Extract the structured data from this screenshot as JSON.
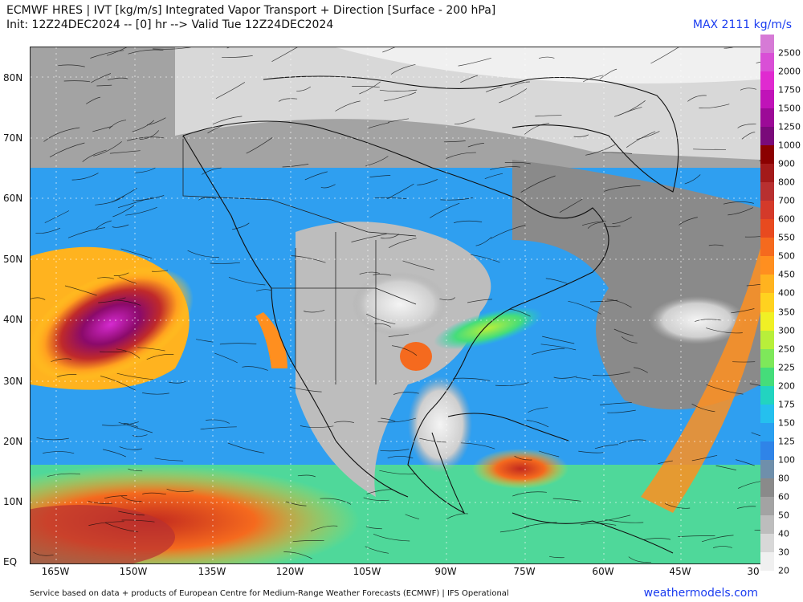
{
  "header": {
    "title_line1": "ECMWF HRES | IVT [kg/m/s] Integrated Vapor Transport + Direction [Surface - 200 hPa]",
    "title_line2": "Init: 12Z24DEC2024 -- [0] hr --> Valid Tue 12Z24DEC2024",
    "max_label": "MAX 2111 kg/m/s"
  },
  "map": {
    "latitude_labels": [
      "80N",
      "70N",
      "60N",
      "50N",
      "40N",
      "30N",
      "20N",
      "10N",
      "EQ"
    ],
    "longitude_labels": [
      "165W",
      "150W",
      "135W",
      "120W",
      "105W",
      "90W",
      "75W",
      "60W",
      "45W",
      "30"
    ]
  },
  "colorbar": {
    "levels": [
      {
        "label": "2500",
        "color": "#d67ad6"
      },
      {
        "label": "2000",
        "color": "#d94fd6"
      },
      {
        "label": "1750",
        "color": "#e02ad0"
      },
      {
        "label": "1500",
        "color": "#c013b8"
      },
      {
        "label": "1250",
        "color": "#9c0a97"
      },
      {
        "label": "1000",
        "color": "#7a0a7a"
      },
      {
        "label": "900",
        "color": "#8b0000"
      },
      {
        "label": "800",
        "color": "#a31a1a"
      },
      {
        "label": "700",
        "color": "#b83030"
      },
      {
        "label": "600",
        "color": "#d43a2a"
      },
      {
        "label": "550",
        "color": "#e84a1f"
      },
      {
        "label": "500",
        "color": "#f56a1e"
      },
      {
        "label": "450",
        "color": "#ff8f1f"
      },
      {
        "label": "400",
        "color": "#ffb31f"
      },
      {
        "label": "350",
        "color": "#ffd21f"
      },
      {
        "label": "300",
        "color": "#f0f025"
      },
      {
        "label": "250",
        "color": "#b8ef3a"
      },
      {
        "label": "225",
        "color": "#7ee85a"
      },
      {
        "label": "200",
        "color": "#45dd7a"
      },
      {
        "label": "175",
        "color": "#22d4c0"
      },
      {
        "label": "150",
        "color": "#25c0ee"
      },
      {
        "label": "125",
        "color": "#2aa0f0"
      },
      {
        "label": "100",
        "color": "#2f84e8"
      },
      {
        "label": "80",
        "color": "#6f8fab"
      },
      {
        "label": "60",
        "color": "#8a8a8a"
      },
      {
        "label": "50",
        "color": "#a3a3a3"
      },
      {
        "label": "40",
        "color": "#bdbdbd"
      },
      {
        "label": "30",
        "color": "#d8d8d8"
      },
      {
        "label": "20",
        "color": "#f0f0f0"
      }
    ]
  },
  "footer": {
    "credit": "Service based on data + products of European Centre for Medium-Range Weather Forecasts (ECMWF) | IFS Operational",
    "site": "weathermodels.com"
  }
}
